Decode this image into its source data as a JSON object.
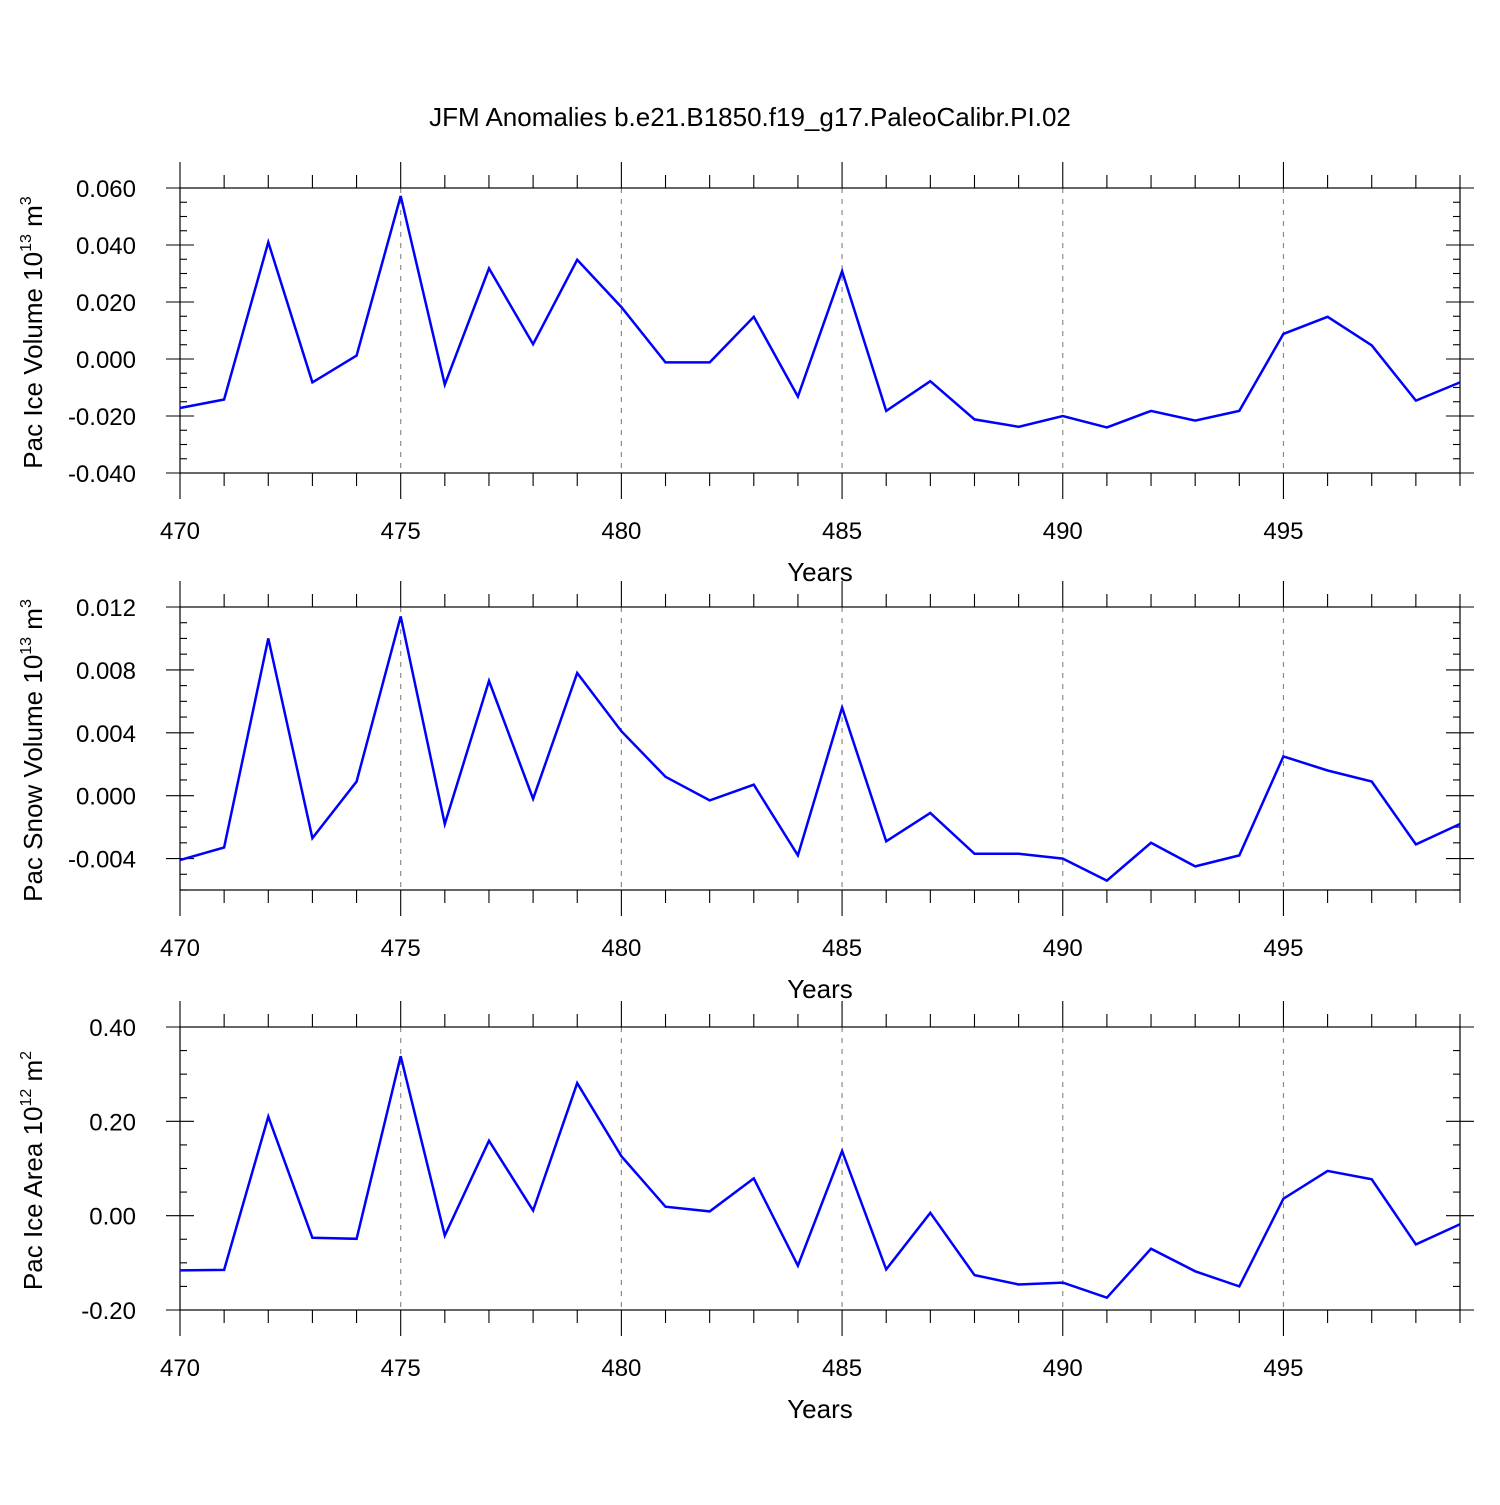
{
  "colors": {
    "series": "#0000ff",
    "axis": "#000000",
    "grid": "#8c8c8c"
  },
  "title": "JFM Anomalies b.e21.B1850.f19_g17.PaleoCalibr.PI.02",
  "chart_data": [
    {
      "type": "line",
      "name": "pac-ice-volume",
      "xlabel": "Years",
      "ylabel_main": "Pac Ice Volume 10",
      "ylabel_exp": "13",
      "ylabel_unit": " m",
      "ylabel_unit_exp": "3",
      "xlim": [
        470,
        499
      ],
      "ylim": [
        -0.04,
        0.06
      ],
      "yticks": [
        -0.04,
        -0.02,
        0.0,
        0.02,
        0.04,
        0.06
      ],
      "ytick_labels": [
        "-0.040",
        "-0.020",
        "0.000",
        "0.020",
        "0.040",
        "0.060"
      ],
      "yminor_step": 0.005,
      "xticks": [
        470,
        475,
        480,
        485,
        490,
        495
      ],
      "xtick_labels": [
        "470",
        "475",
        "480",
        "485",
        "490",
        "495"
      ],
      "grid": "vertical dashed at major x ticks",
      "x": [
        470,
        471,
        472,
        473,
        474,
        475,
        476,
        477,
        478,
        479,
        480,
        481,
        482,
        483,
        484,
        485,
        486,
        487,
        488,
        489,
        490,
        491,
        492,
        493,
        494,
        495,
        496,
        497,
        498,
        499
      ],
      "values": [
        -0.0172,
        -0.0142,
        0.041,
        -0.0082,
        0.0012,
        0.0572,
        -0.009,
        0.0318,
        0.0052,
        0.0348,
        0.0182,
        -0.0012,
        -0.0012,
        0.0148,
        -0.0132,
        0.0308,
        -0.0182,
        -0.0078,
        -0.0212,
        -0.0238,
        -0.02,
        -0.024,
        -0.0182,
        -0.0216,
        -0.0182,
        0.0088,
        0.0148,
        0.0048,
        -0.0146,
        -0.0082
      ]
    },
    {
      "type": "line",
      "name": "pac-snow-volume",
      "xlabel": "Years",
      "ylabel_main": "Pac Snow Volume 10",
      "ylabel_exp": "13",
      "ylabel_unit": " m",
      "ylabel_unit_exp": "3",
      "xlim": [
        470,
        499
      ],
      "ylim": [
        -0.006,
        0.012
      ],
      "yticks": [
        -0.004,
        0.0,
        0.004,
        0.008,
        0.012
      ],
      "ytick_labels": [
        "-0.004",
        "0.000",
        "0.004",
        "0.008",
        "0.012"
      ],
      "yminor_step": 0.001,
      "xticks": [
        470,
        475,
        480,
        485,
        490,
        495
      ],
      "xtick_labels": [
        "470",
        "475",
        "480",
        "485",
        "490",
        "495"
      ],
      "grid": "vertical dashed at major x ticks",
      "x": [
        470,
        471,
        472,
        473,
        474,
        475,
        476,
        477,
        478,
        479,
        480,
        481,
        482,
        483,
        484,
        485,
        486,
        487,
        488,
        489,
        490,
        491,
        492,
        493,
        494,
        495,
        496,
        497,
        498,
        499
      ],
      "values": [
        -0.0041,
        -0.0033,
        0.01,
        -0.0027,
        0.0009,
        0.0114,
        -0.0018,
        0.0073,
        -0.0002,
        0.0078,
        0.0041,
        0.0012,
        -0.0003,
        0.0007,
        -0.0038,
        0.0056,
        -0.0029,
        -0.0011,
        -0.0037,
        -0.0037,
        -0.004,
        -0.0054,
        -0.003,
        -0.0045,
        -0.0038,
        0.0025,
        0.0016,
        0.0009,
        -0.0031,
        -0.0018
      ]
    },
    {
      "type": "line",
      "name": "pac-ice-area",
      "xlabel": "Years",
      "ylabel_main": "Pac Ice Area 10",
      "ylabel_exp": "12",
      "ylabel_unit": " m",
      "ylabel_unit_exp": "2",
      "xlim": [
        470,
        499
      ],
      "ylim": [
        -0.2,
        0.4
      ],
      "yticks": [
        -0.2,
        0.0,
        0.2,
        0.4
      ],
      "ytick_labels": [
        "-0.20",
        "0.00",
        "0.20",
        "0.40"
      ],
      "yminor_step": 0.05,
      "xticks": [
        470,
        475,
        480,
        485,
        490,
        495
      ],
      "xtick_labels": [
        "470",
        "475",
        "480",
        "485",
        "490",
        "495"
      ],
      "grid": "vertical dashed at major x ticks",
      "x": [
        470,
        471,
        472,
        473,
        474,
        475,
        476,
        477,
        478,
        479,
        480,
        481,
        482,
        483,
        484,
        485,
        486,
        487,
        488,
        489,
        490,
        491,
        492,
        493,
        494,
        495,
        496,
        497,
        498,
        499
      ],
      "values": [
        -0.116,
        -0.115,
        0.21,
        -0.047,
        -0.049,
        0.338,
        -0.042,
        0.159,
        0.011,
        0.281,
        0.126,
        0.019,
        0.009,
        0.079,
        -0.106,
        0.137,
        -0.114,
        0.006,
        -0.126,
        -0.146,
        -0.142,
        -0.174,
        -0.07,
        -0.118,
        -0.15,
        0.036,
        0.095,
        0.077,
        -0.061,
        -0.018
      ]
    }
  ]
}
